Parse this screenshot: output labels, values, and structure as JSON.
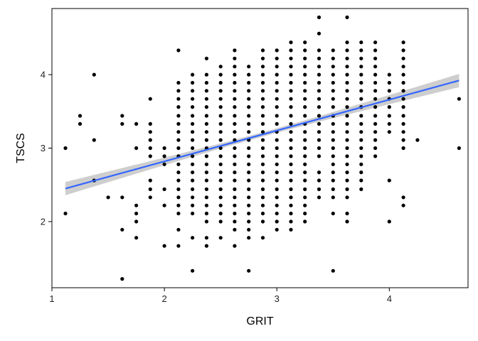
{
  "chart_data": {
    "type": "scatter",
    "title": "",
    "xlabel": "GRIT",
    "ylabel": "TSCS",
    "xlim": [
      1.0,
      4.7
    ],
    "ylim": [
      1.1,
      4.9
    ],
    "xticks": [
      "1",
      "2",
      "3",
      "4"
    ],
    "xtick_values": [
      1,
      2,
      3,
      4
    ],
    "yticks": [
      "2",
      "3",
      "4"
    ],
    "ytick_values": [
      2,
      3,
      4
    ],
    "grid": false,
    "legend": "none",
    "point_color": "#000000",
    "fit_line": {
      "color": "#3366FF",
      "band_color": "#BEBEBE",
      "x": [
        1.12,
        4.62
      ],
      "y": [
        2.45,
        3.92
      ],
      "band_halfwidth_ends": 0.09,
      "band_halfwidth_center": 0.03
    },
    "x_grid_values": [
      1.12,
      1.25,
      1.375,
      1.5,
      1.625,
      1.75,
      1.875,
      2.0,
      2.125,
      2.25,
      2.375,
      2.5,
      2.625,
      2.75,
      2.875,
      3.0,
      3.125,
      3.25,
      3.375,
      3.5,
      3.625,
      3.75,
      3.875,
      4.0,
      4.125,
      4.25,
      4.62
    ],
    "y_grid_step": 0.0556,
    "columns": [
      {
        "x": 1.12,
        "ys": [
          2.11,
          3.0
        ]
      },
      {
        "x": 1.25,
        "ys": [
          3.33,
          3.44
        ]
      },
      {
        "x": 1.375,
        "ys": [
          2.56,
          3.11,
          4.0
        ]
      },
      {
        "x": 1.5,
        "ys": [
          2.33
        ]
      },
      {
        "x": 1.625,
        "ys": [
          1.22,
          1.89,
          2.33,
          3.33,
          3.44
        ]
      },
      {
        "x": 1.75,
        "ys": [
          1.78,
          2.0,
          2.11,
          2.22,
          3.0,
          3.33
        ]
      },
      {
        "x": 1.875,
        "ys": [
          2.33,
          2.44,
          2.56,
          2.89,
          3.0,
          3.11,
          3.22,
          3.33,
          3.67
        ]
      },
      {
        "x": 2.0,
        "ys": [
          1.67,
          2.22,
          2.44,
          2.78,
          2.89,
          3.0
        ]
      },
      {
        "x": 2.125,
        "ys": [
          1.67,
          1.89,
          2.11,
          2.22,
          2.33,
          2.44,
          2.56,
          2.67,
          2.78,
          2.89,
          3.0,
          3.11,
          3.22,
          3.33,
          3.44,
          3.56,
          3.67,
          3.78,
          3.89,
          4.33
        ]
      },
      {
        "x": 2.25,
        "ys": [
          1.33,
          1.78,
          2.11,
          2.22,
          2.33,
          2.44,
          2.56,
          2.67,
          2.78,
          2.89,
          3.0,
          3.11,
          3.22,
          3.33,
          3.44,
          3.56,
          3.67,
          3.78,
          3.89,
          4.0
        ]
      },
      {
        "x": 2.375,
        "ys": [
          1.67,
          1.78,
          2.0,
          2.11,
          2.22,
          2.33,
          2.44,
          2.56,
          2.67,
          2.78,
          2.89,
          3.0,
          3.11,
          3.22,
          3.33,
          3.44,
          3.56,
          3.67,
          3.78,
          3.89,
          4.0,
          4.22
        ]
      },
      {
        "x": 2.5,
        "ys": [
          1.78,
          2.0,
          2.11,
          2.22,
          2.33,
          2.44,
          2.56,
          2.67,
          2.78,
          2.89,
          3.0,
          3.11,
          3.22,
          3.33,
          3.44,
          3.56,
          3.67,
          3.78,
          3.89,
          4.0,
          4.11
        ]
      },
      {
        "x": 2.625,
        "ys": [
          1.67,
          1.89,
          2.0,
          2.11,
          2.22,
          2.33,
          2.44,
          2.56,
          2.67,
          2.78,
          2.89,
          3.0,
          3.11,
          3.22,
          3.33,
          3.44,
          3.56,
          3.67,
          3.78,
          3.89,
          4.0,
          4.11,
          4.22,
          4.33
        ]
      },
      {
        "x": 2.75,
        "ys": [
          1.33,
          1.78,
          1.89,
          2.0,
          2.11,
          2.22,
          2.33,
          2.44,
          2.56,
          2.67,
          2.78,
          2.89,
          3.0,
          3.11,
          3.22,
          3.33,
          3.44,
          3.56,
          3.67,
          3.78,
          3.89,
          4.0,
          4.11
        ]
      },
      {
        "x": 2.875,
        "ys": [
          1.78,
          2.0,
          2.11,
          2.22,
          2.33,
          2.44,
          2.56,
          2.67,
          2.78,
          2.89,
          3.0,
          3.11,
          3.22,
          3.33,
          3.44,
          3.56,
          3.67,
          3.78,
          3.89,
          4.0,
          4.11,
          4.22,
          4.33
        ]
      },
      {
        "x": 3.0,
        "ys": [
          1.89,
          2.0,
          2.11,
          2.22,
          2.33,
          2.44,
          2.56,
          2.67,
          2.78,
          2.89,
          3.0,
          3.11,
          3.22,
          3.33,
          3.44,
          3.56,
          3.67,
          3.78,
          3.89,
          4.0,
          4.11,
          4.22,
          4.33
        ]
      },
      {
        "x": 3.125,
        "ys": [
          1.89,
          2.0,
          2.11,
          2.22,
          2.33,
          2.44,
          2.56,
          2.67,
          2.78,
          2.89,
          3.0,
          3.11,
          3.22,
          3.33,
          3.44,
          3.56,
          3.67,
          3.78,
          3.89,
          4.0,
          4.11,
          4.22,
          4.33,
          4.44
        ]
      },
      {
        "x": 3.25,
        "ys": [
          2.0,
          2.11,
          2.22,
          2.33,
          2.44,
          2.56,
          2.67,
          2.78,
          2.89,
          3.0,
          3.11,
          3.22,
          3.33,
          3.44,
          3.56,
          3.67,
          3.78,
          3.89,
          4.0,
          4.11,
          4.22,
          4.33,
          4.44
        ]
      },
      {
        "x": 3.375,
        "ys": [
          2.33,
          2.44,
          2.56,
          2.67,
          2.89,
          3.0,
          3.11,
          3.22,
          3.33,
          3.44,
          3.56,
          3.67,
          3.78,
          3.89,
          4.0,
          4.11,
          4.22,
          4.33,
          4.56,
          4.78
        ]
      },
      {
        "x": 3.5,
        "ys": [
          1.33,
          2.11,
          2.33,
          2.44,
          2.56,
          2.67,
          2.78,
          2.89,
          3.0,
          3.11,
          3.22,
          3.33,
          3.44,
          3.56,
          3.67,
          3.78,
          3.89,
          4.0,
          4.11,
          4.22,
          4.33
        ]
      },
      {
        "x": 3.625,
        "ys": [
          2.0,
          2.11,
          2.33,
          2.44,
          2.56,
          2.67,
          2.78,
          2.89,
          3.0,
          3.11,
          3.22,
          3.33,
          3.44,
          3.56,
          3.67,
          3.78,
          3.89,
          4.0,
          4.11,
          4.22,
          4.33,
          4.44,
          4.78
        ]
      },
      {
        "x": 3.75,
        "ys": [
          2.44,
          2.56,
          2.67,
          2.78,
          2.89,
          3.0,
          3.11,
          3.22,
          3.33,
          3.44,
          3.56,
          3.67,
          3.78,
          3.89,
          4.0,
          4.11,
          4.22,
          4.33,
          4.44
        ]
      },
      {
        "x": 3.875,
        "ys": [
          2.89,
          3.0,
          3.11,
          3.22,
          3.33,
          3.44,
          3.56,
          3.67,
          3.78,
          3.89,
          4.0,
          4.11,
          4.22,
          4.33,
          4.44
        ]
      },
      {
        "x": 4.0,
        "ys": [
          2.0,
          2.56,
          3.22,
          3.33,
          3.44,
          3.56,
          3.67,
          3.78,
          3.89,
          4.0
        ]
      },
      {
        "x": 4.125,
        "ys": [
          2.22,
          2.33,
          3.0,
          3.11,
          3.22,
          3.33,
          3.44,
          3.56,
          3.67,
          3.78,
          3.89,
          4.0,
          4.11,
          4.22,
          4.33,
          4.44
        ]
      },
      {
        "x": 4.25,
        "ys": [
          3.11
        ]
      },
      {
        "x": 4.62,
        "ys": [
          3.0,
          3.67
        ]
      }
    ]
  }
}
